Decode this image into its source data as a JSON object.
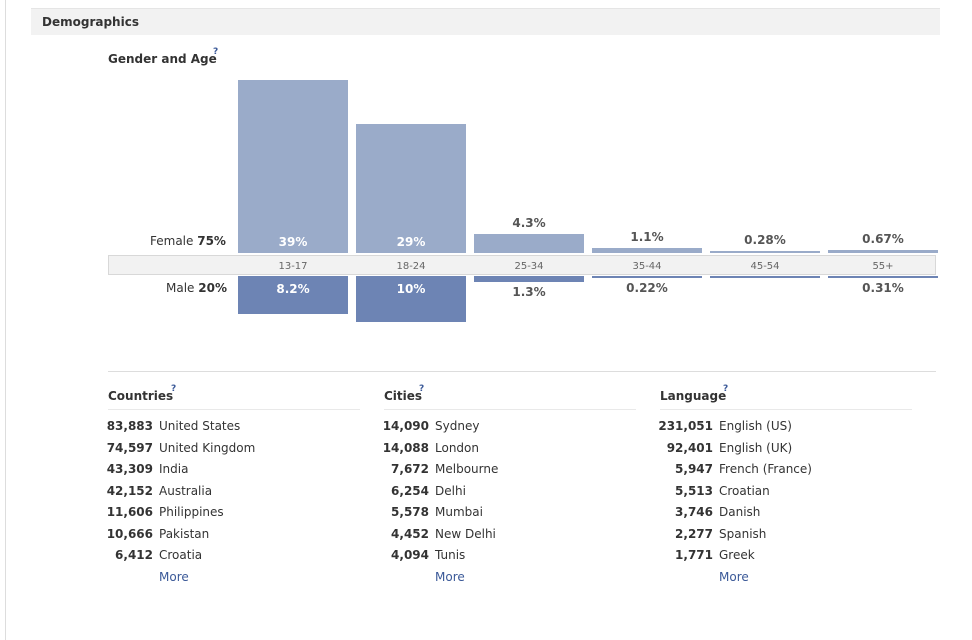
{
  "section": {
    "title": "Demographics"
  },
  "gender_age": {
    "title": "Gender and Age",
    "help": "?",
    "female": {
      "label": "Female",
      "pct": "75%"
    },
    "male": {
      "label": "Male",
      "pct": "20%"
    },
    "age_groups": [
      {
        "label": "13-17",
        "female": 39,
        "female_label": "39%",
        "male": 8.2,
        "male_label": "8.2%"
      },
      {
        "label": "18-24",
        "female": 29,
        "female_label": "29%",
        "male": 10,
        "male_label": "10%"
      },
      {
        "label": "25-34",
        "female": 4.3,
        "female_label": "4.3%",
        "male": 1.3,
        "male_label": "1.3%"
      },
      {
        "label": "35-44",
        "female": 1.1,
        "female_label": "1.1%",
        "male": 0.22,
        "male_label": "0.22%"
      },
      {
        "label": "45-54",
        "female": 0.28,
        "female_label": "0.28%",
        "male": 0,
        "male_label": ""
      },
      {
        "label": "55+",
        "female": 0.67,
        "female_label": "0.67%",
        "male": 0.31,
        "male_label": "0.31%"
      }
    ],
    "colors": {
      "female": "#9aabc9",
      "male": "#6d84b4"
    }
  },
  "countries": {
    "title": "Countries",
    "help": "?",
    "more": "More",
    "rows": [
      {
        "count": "83,883",
        "name": "United States"
      },
      {
        "count": "74,597",
        "name": "United Kingdom"
      },
      {
        "count": "43,309",
        "name": "India"
      },
      {
        "count": "42,152",
        "name": "Australia"
      },
      {
        "count": "11,606",
        "name": "Philippines"
      },
      {
        "count": "10,666",
        "name": "Pakistan"
      },
      {
        "count": "6,412",
        "name": "Croatia"
      }
    ]
  },
  "cities": {
    "title": "Cities",
    "help": "?",
    "more": "More",
    "rows": [
      {
        "count": "14,090",
        "name": "Sydney"
      },
      {
        "count": "14,088",
        "name": "London"
      },
      {
        "count": "7,672",
        "name": "Melbourne"
      },
      {
        "count": "6,254",
        "name": "Delhi"
      },
      {
        "count": "5,578",
        "name": "Mumbai"
      },
      {
        "count": "4,452",
        "name": "New Delhi"
      },
      {
        "count": "4,094",
        "name": "Tunis"
      }
    ]
  },
  "language": {
    "title": "Language",
    "help": "?",
    "more": "More",
    "rows": [
      {
        "count": "231,051",
        "name": "English (US)"
      },
      {
        "count": "92,401",
        "name": "English (UK)"
      },
      {
        "count": "5,947",
        "name": "French (France)"
      },
      {
        "count": "5,513",
        "name": "Croatian"
      },
      {
        "count": "3,746",
        "name": "Danish"
      },
      {
        "count": "2,277",
        "name": "Spanish"
      },
      {
        "count": "1,771",
        "name": "Greek"
      }
    ]
  }
}
